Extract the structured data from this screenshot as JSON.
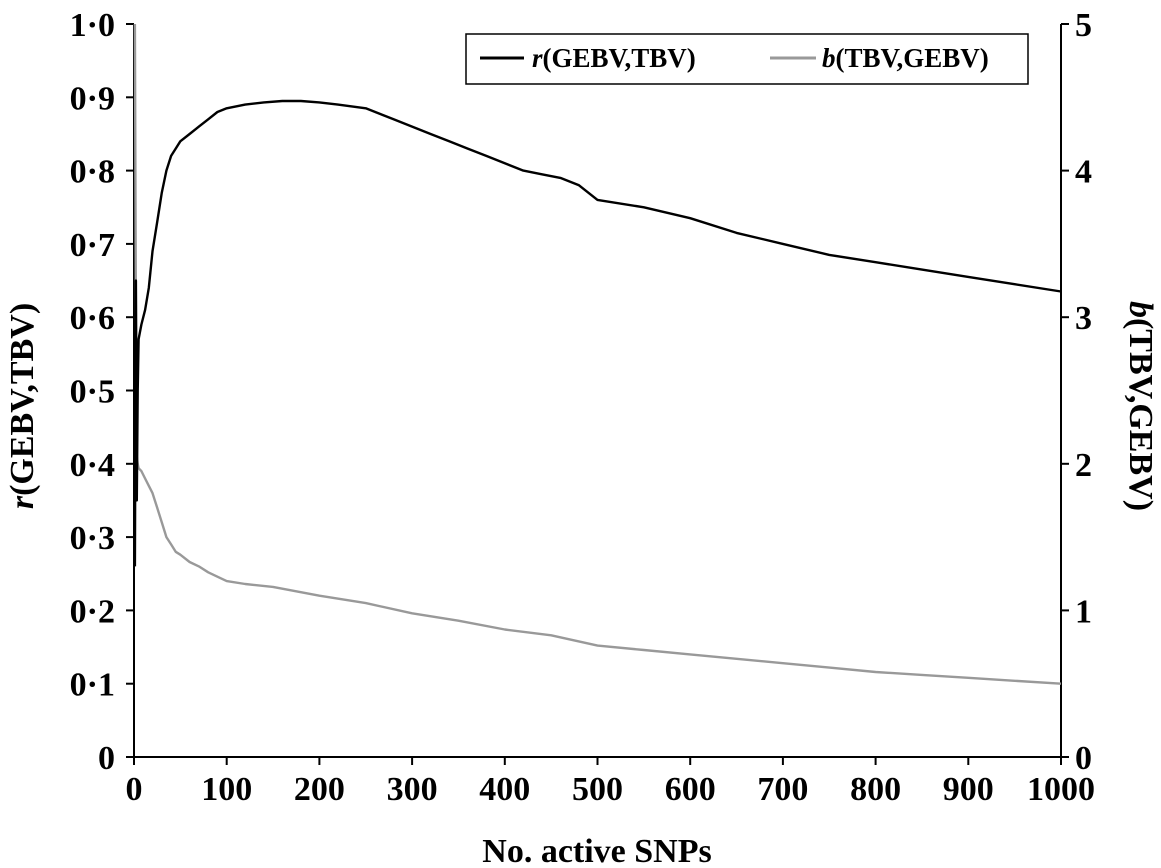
{
  "chart_data": {
    "type": "line",
    "title": "",
    "xlabel": "No. active SNPs",
    "ylabel_left": {
      "italic": "r",
      "rest": "(GEBV,TBV)"
    },
    "ylabel_right": {
      "italic": "b",
      "rest": "(TBV,GEBV)"
    },
    "xlim": [
      0,
      1000
    ],
    "ylim_left": [
      0,
      1.0
    ],
    "ylim_right": [
      0,
      5
    ],
    "x_ticks": [
      "0",
      "100",
      "200",
      "300",
      "400",
      "500",
      "600",
      "700",
      "800",
      "900",
      "1000"
    ],
    "y_left_ticks": [
      "0",
      "0·1",
      "0·2",
      "0·3",
      "0·4",
      "0·5",
      "0·6",
      "0·7",
      "0·8",
      "0·9",
      "1·0"
    ],
    "y_right_ticks": [
      "0",
      "1",
      "2",
      "3",
      "4",
      "5"
    ],
    "grid": false,
    "legend_position": "top-right",
    "series": [
      {
        "name": "r(GEBV,TBV)",
        "name_italic": "r",
        "name_rest": "(GEBV,TBV)",
        "axis": "left",
        "color": "#000000",
        "x": [
          1,
          2,
          3,
          4,
          5,
          8,
          12,
          16,
          20,
          25,
          30,
          35,
          40,
          45,
          50,
          60,
          70,
          80,
          90,
          100,
          120,
          140,
          160,
          180,
          200,
          220,
          250,
          280,
          300,
          320,
          340,
          360,
          380,
          400,
          420,
          440,
          460,
          480,
          500,
          550,
          600,
          650,
          700,
          750,
          800,
          850,
          900,
          950,
          1000
        ],
        "y": [
          0.26,
          0.65,
          0.35,
          0.5,
          0.57,
          0.59,
          0.61,
          0.64,
          0.69,
          0.73,
          0.77,
          0.8,
          0.82,
          0.83,
          0.84,
          0.85,
          0.86,
          0.87,
          0.88,
          0.885,
          0.89,
          0.893,
          0.895,
          0.895,
          0.893,
          0.89,
          0.885,
          0.87,
          0.86,
          0.85,
          0.84,
          0.83,
          0.82,
          0.81,
          0.8,
          0.795,
          0.79,
          0.78,
          0.76,
          0.75,
          0.735,
          0.715,
          0.7,
          0.685,
          0.675,
          0.665,
          0.655,
          0.645,
          0.635
        ]
      },
      {
        "name": "b(TBV,GEBV)",
        "name_italic": "b",
        "name_rest": "(TBV,GEBV)",
        "axis": "right",
        "color": "#999999",
        "x": [
          1,
          2,
          3,
          4,
          5,
          8,
          12,
          16,
          20,
          25,
          30,
          35,
          40,
          45,
          50,
          60,
          70,
          80,
          90,
          100,
          120,
          150,
          200,
          250,
          300,
          350,
          400,
          450,
          500,
          550,
          600,
          650,
          700,
          750,
          800,
          850,
          900,
          950,
          1000
        ],
        "y": [
          5.0,
          3.0,
          2.05,
          2.0,
          1.97,
          1.95,
          1.9,
          1.85,
          1.8,
          1.7,
          1.6,
          1.5,
          1.45,
          1.4,
          1.38,
          1.33,
          1.3,
          1.26,
          1.23,
          1.2,
          1.18,
          1.16,
          1.1,
          1.05,
          0.98,
          0.93,
          0.87,
          0.83,
          0.76,
          0.73,
          0.7,
          0.67,
          0.64,
          0.61,
          0.58,
          0.56,
          0.54,
          0.52,
          0.5
        ]
      }
    ]
  }
}
